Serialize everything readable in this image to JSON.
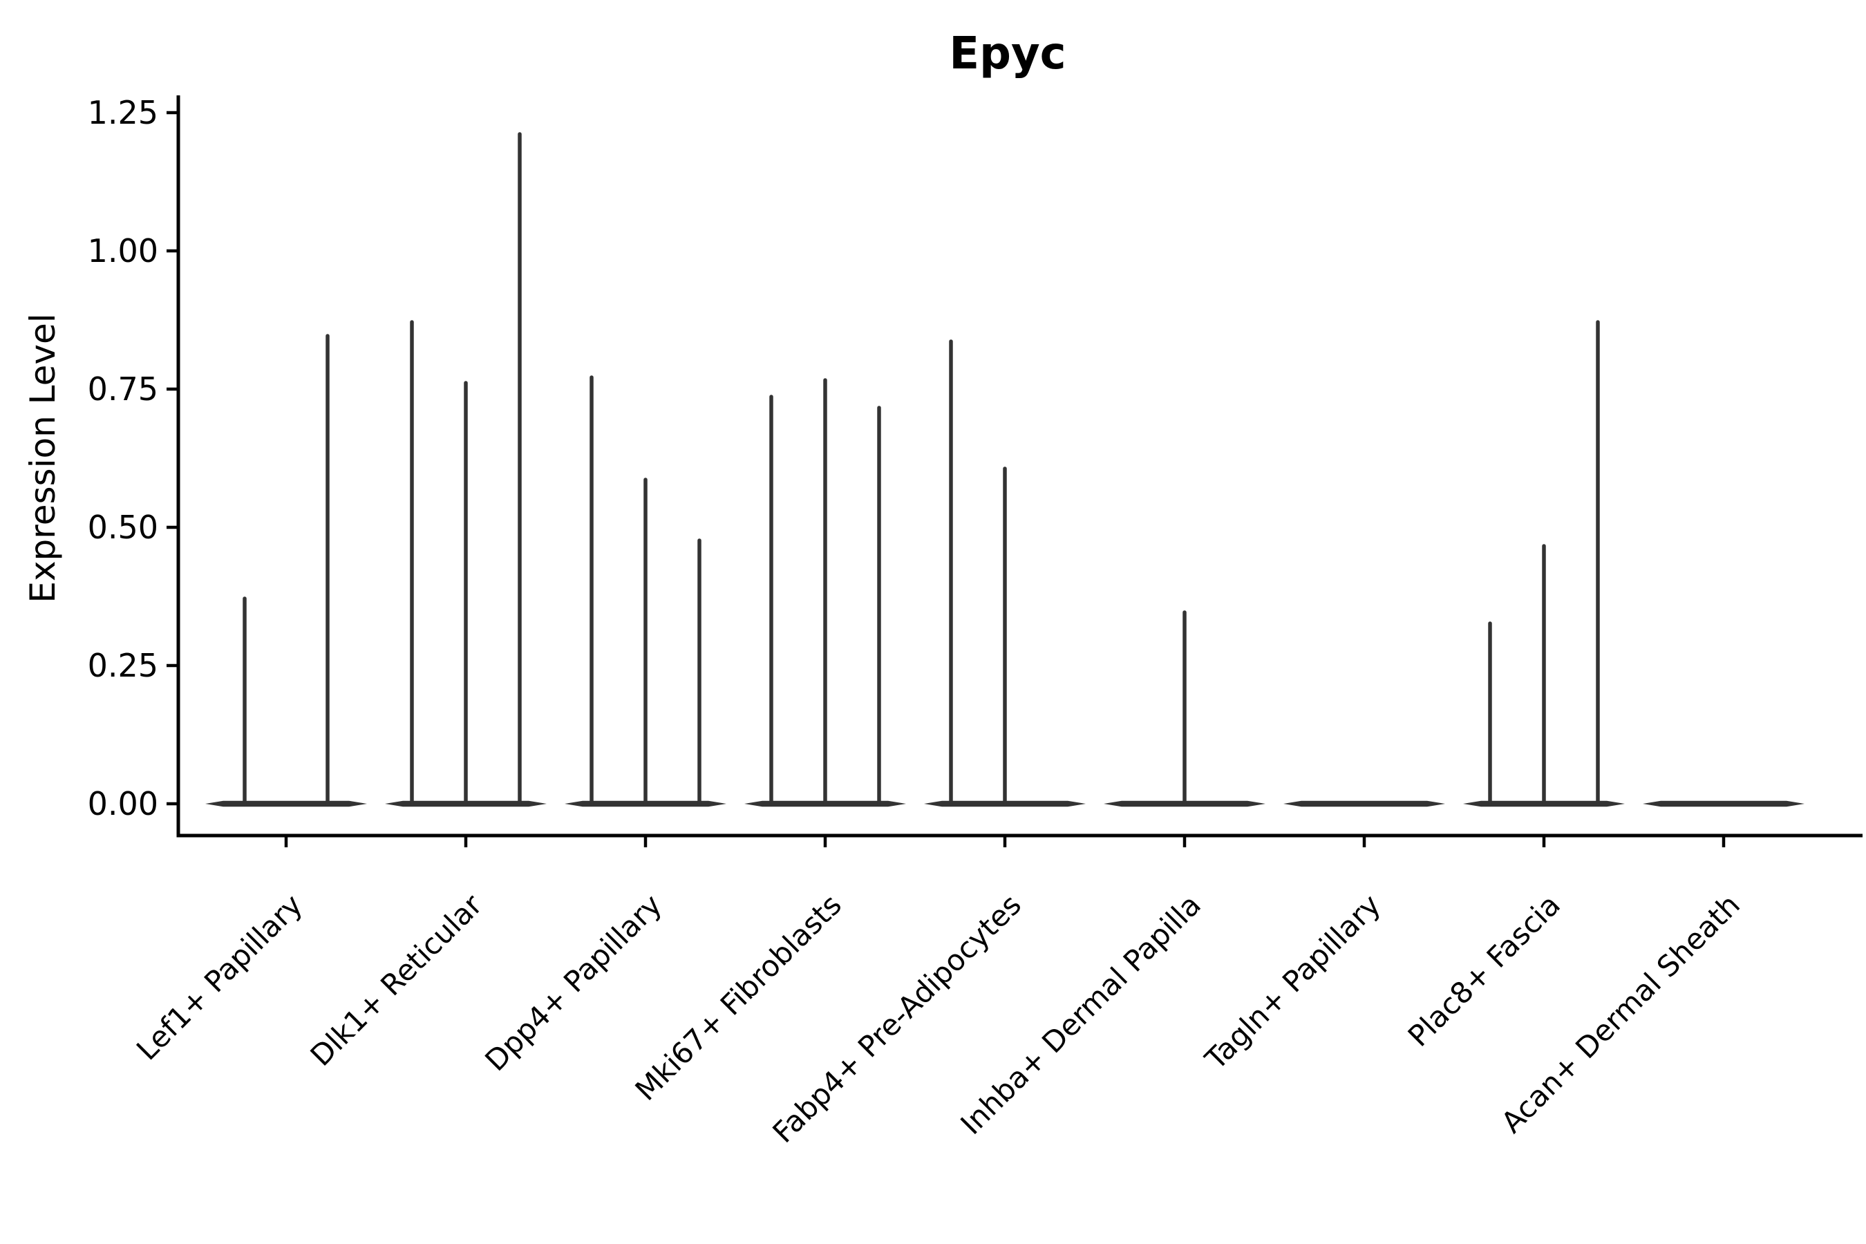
{
  "figure": {
    "background": "#ffffff"
  },
  "chart_data": {
    "type": "violin",
    "title": "Epyc",
    "xlabel": "",
    "ylabel": "Expression Level",
    "ylim": [
      0,
      1.25
    ],
    "ytick_values": [
      0,
      0.25,
      0.5,
      0.75,
      1.0,
      1.25
    ],
    "ytick_labels": [
      "0.00",
      "0.25",
      "0.50",
      "0.75",
      "1.00",
      "1.25"
    ],
    "grid": false,
    "legend": "none",
    "style": {
      "violin_color": "#333333",
      "axis_color": "#000000",
      "text_color": "#000000"
    },
    "note": "Needle-style violin plot: each cluster shows 2-3 ultra-thin violins whose bodies are flat at expression 0 with a thin spike rising to the max expression value listed in violin_peaks (0 = completely flat violin).",
    "categories": [
      "Lef1+ Papillary",
      "Dlk1+ Reticular",
      "Dpp4+ Papillary",
      "Mki67+ Fibroblasts",
      "Fabp4+ Pre-Adipocytes",
      "Inhba+ Dermal Papilla",
      "Tagln+ Papillary",
      "Plac8+ Fascia",
      "Acan+ Dermal Sheath"
    ],
    "groups": [
      {
        "category": "Lef1+ Papillary",
        "violin_peaks": [
          0.375,
          0.85
        ]
      },
      {
        "category": "Dlk1+ Reticular",
        "violin_peaks": [
          0.875,
          0.765,
          1.215
        ]
      },
      {
        "category": "Dpp4+ Papillary",
        "violin_peaks": [
          0.775,
          0.59,
          0.48
        ]
      },
      {
        "category": "Mki67+ Fibroblasts",
        "violin_peaks": [
          0.74,
          0.77,
          0.72
        ]
      },
      {
        "category": "Fabp4+ Pre-Adipocytes",
        "violin_peaks": [
          0.84,
          0.61,
          0
        ]
      },
      {
        "category": "Inhba+ Dermal Papilla",
        "violin_peaks": [
          0,
          0.35,
          0
        ]
      },
      {
        "category": "Tagln+ Papillary",
        "violin_peaks": [
          0,
          0,
          0
        ]
      },
      {
        "category": "Plac8+ Fascia",
        "violin_peaks": [
          0.33,
          0.47,
          0.875
        ]
      },
      {
        "category": "Acan+ Dermal Sheath",
        "violin_peaks": [
          0,
          0,
          0
        ]
      }
    ]
  }
}
